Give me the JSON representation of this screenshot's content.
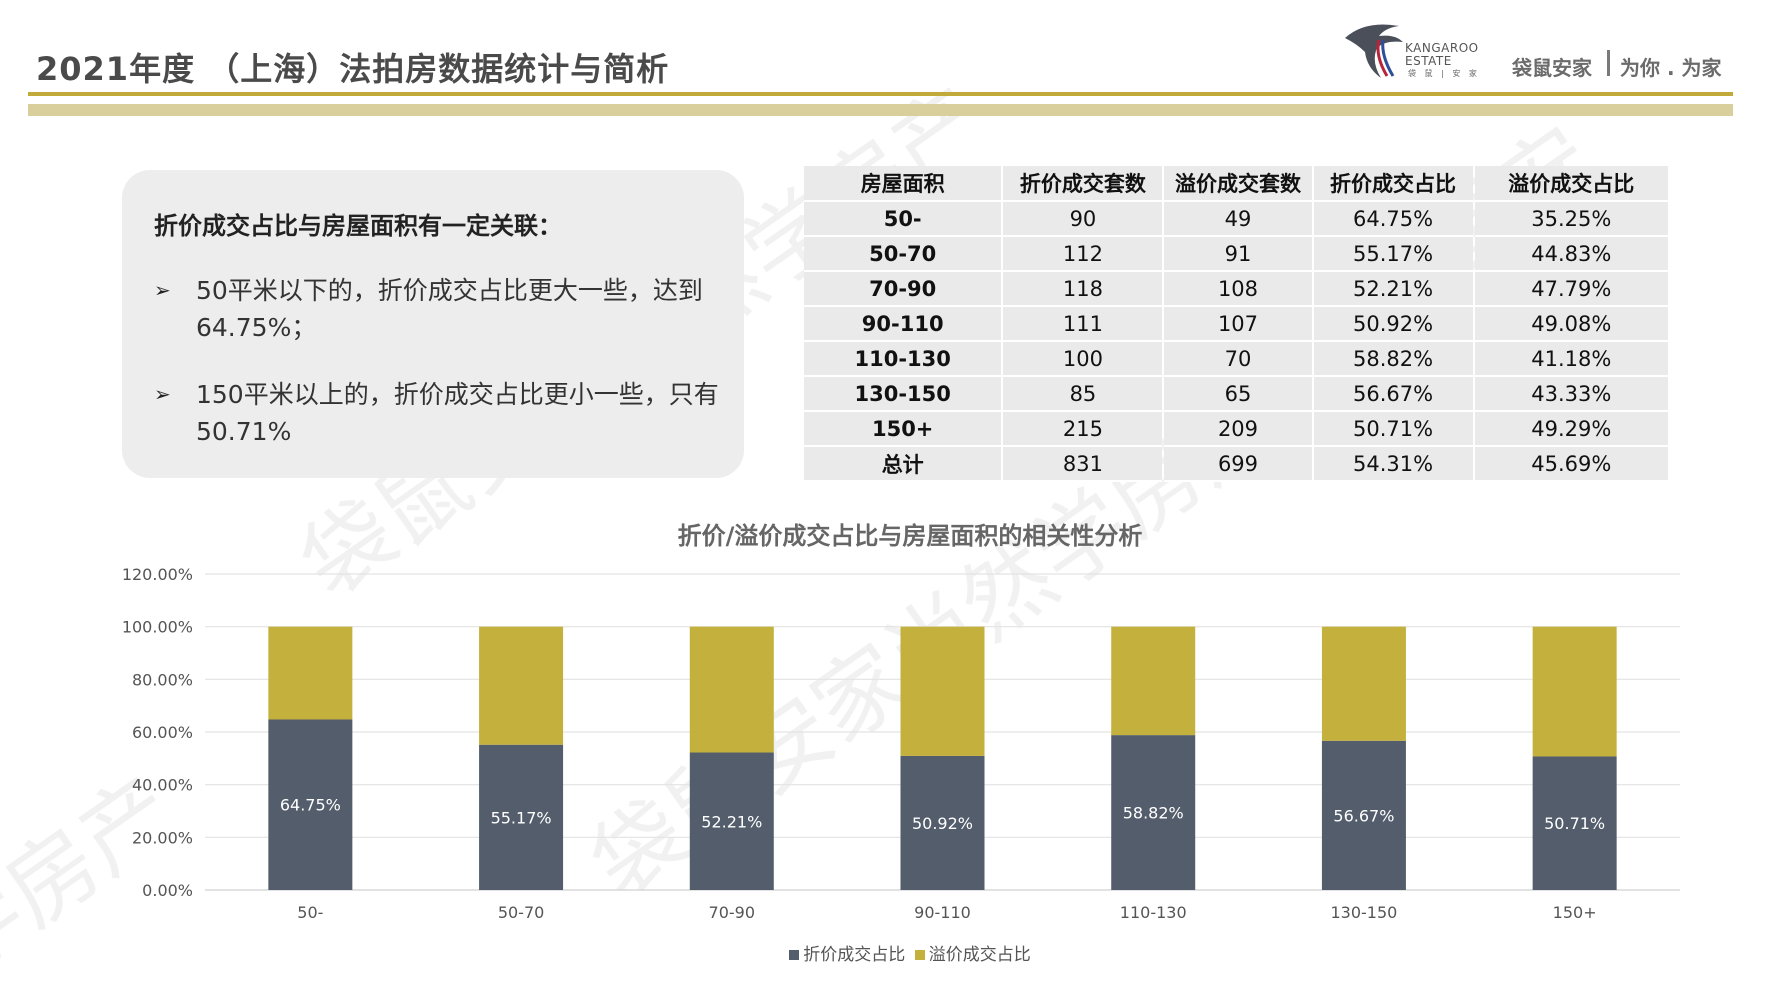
{
  "header": {
    "title": "2021年度 （上海）法拍房数据统计与简析",
    "logo_text_line1": "KANGAROO",
    "logo_text_line2": "ESTATE",
    "logo_text_line3": "袋 鼠 | 安 家",
    "brand": "袋鼠安家",
    "slogan": "为你 . 为家",
    "colors": {
      "accent": "#c1a93a",
      "accent_light": "#d9cf9c"
    }
  },
  "summary": {
    "heading": "折价成交占比与房屋面积有一定关联：",
    "bullets": [
      "50平米以下的，折价成交占比更大一些，达到64.75%；",
      "150平米以上的，折价成交占比更小一些，只有50.71%"
    ],
    "bullet_symbol": "➢"
  },
  "table": {
    "headers": [
      "房屋面积",
      "折价成交套数",
      "溢价成交套数",
      "折价成交占比",
      "溢价成交占比"
    ],
    "rows": [
      [
        "50-",
        "90",
        "49",
        "64.75%",
        "35.25%"
      ],
      [
        "50-70",
        "112",
        "91",
        "55.17%",
        "44.83%"
      ],
      [
        "70-90",
        "118",
        "108",
        "52.21%",
        "47.79%"
      ],
      [
        "90-110",
        "111",
        "107",
        "50.92%",
        "49.08%"
      ],
      [
        "110-130",
        "100",
        "70",
        "58.82%",
        "41.18%"
      ],
      [
        "130-150",
        "85",
        "65",
        "56.67%",
        "43.33%"
      ],
      [
        "150+",
        "215",
        "209",
        "50.71%",
        "49.29%"
      ],
      [
        "总计",
        "831",
        "699",
        "54.31%",
        "45.69%"
      ]
    ]
  },
  "chart_data": {
    "type": "bar",
    "stacked": true,
    "title": "折价/溢价成交占比与房屋面积的相关性分析",
    "categories": [
      "50-",
      "50-70",
      "70-90",
      "90-110",
      "110-130",
      "130-150",
      "150+"
    ],
    "series": [
      {
        "name": "折价成交占比",
        "color": "#535d6b",
        "values": [
          64.75,
          55.17,
          52.21,
          50.92,
          58.82,
          56.67,
          50.71
        ],
        "labels": [
          "64.75%",
          "55.17%",
          "52.21%",
          "50.92%",
          "58.82%",
          "56.67%",
          "50.71%"
        ]
      },
      {
        "name": "溢价成交占比",
        "color": "#c4b03c",
        "values": [
          35.25,
          44.83,
          47.79,
          49.08,
          41.18,
          43.33,
          49.29
        ]
      }
    ],
    "ylim": [
      0,
      120
    ],
    "yticks": [
      "0.00%",
      "20.00%",
      "40.00%",
      "60.00%",
      "80.00%",
      "100.00%",
      "120.00%"
    ],
    "ytick_values": [
      0,
      20,
      40,
      60,
      80,
      100,
      120
    ],
    "grid": true,
    "legend_position": "bottom",
    "xlabel": "",
    "ylabel": ""
  }
}
